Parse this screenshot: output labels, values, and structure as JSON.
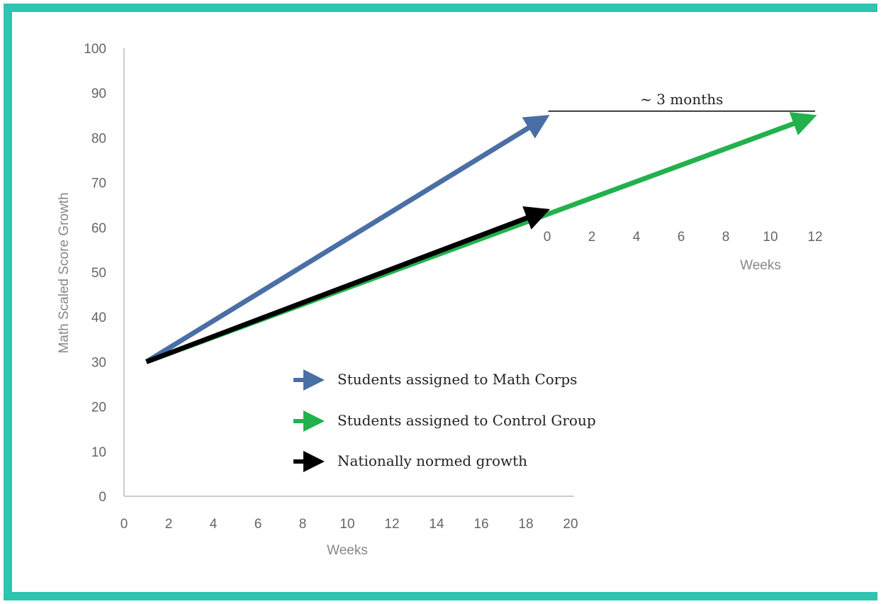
{
  "chart_data": {
    "type": "line",
    "ylabel": "Math Scaled  Score Growth",
    "xlabel": "Weeks",
    "ylim": [
      0,
      100
    ],
    "yticks": [
      0,
      10,
      20,
      30,
      40,
      50,
      60,
      70,
      80,
      90,
      100
    ],
    "xlim": [
      0,
      20
    ],
    "xticks": [
      0,
      2,
      4,
      6,
      8,
      10,
      12,
      14,
      16,
      18,
      20
    ],
    "secondary_x": {
      "label": "Weeks",
      "ticks": [
        0,
        2,
        4,
        6,
        8,
        10,
        12
      ],
      "range": [
        0,
        12
      ]
    },
    "series": [
      {
        "name": "Students assigned to Math Corps",
        "color": "#4a6fa5",
        "start": {
          "x": 1,
          "y": 30
        },
        "end": {
          "x": 19,
          "y": 85
        }
      },
      {
        "name": "Students assigned to Control Group",
        "color": "#22b14c",
        "start": {
          "x": 1,
          "y": 30
        },
        "end_secondary": {
          "x": 12,
          "y": 85
        }
      },
      {
        "name": "Nationally normed growth",
        "color": "#000000",
        "start": {
          "x": 1,
          "y": 30
        },
        "end": {
          "x": 19,
          "y": 64
        }
      }
    ],
    "annotation": {
      "text": "~ 3 months",
      "y": 85,
      "from_x": 19,
      "to_secondary_x": 12
    },
    "legend_position": "bottom-center"
  }
}
